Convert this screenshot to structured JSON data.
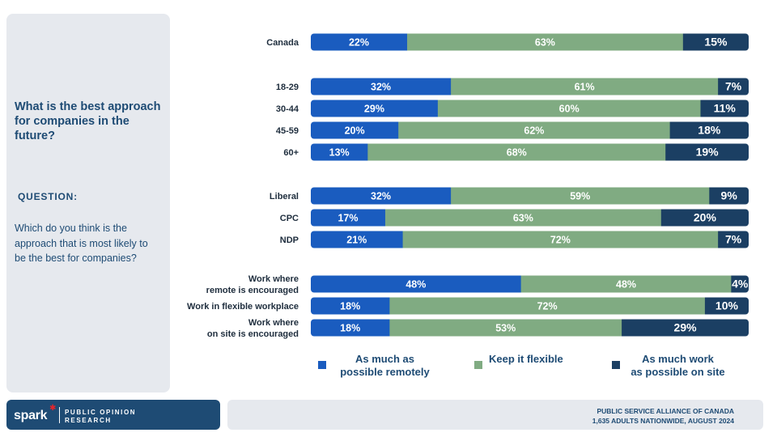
{
  "sidebar": {
    "title": "What is the best approach for companies in the future?",
    "question_label": "QUESTION:",
    "question_text": "Which do you think is the approach that is most likely to be the best for companies?"
  },
  "footer": {
    "brand": "spark",
    "brand_sub": "PUBLIC OPINION RESEARCH",
    "source_line1": "PUBLIC SERVICE ALLIANCE OF CANADA",
    "source_line2": "1,635 ADULTS NATIONWIDE, AUGUST 2024"
  },
  "colors": {
    "remote": "#1a5cbf",
    "flexible": "#80ab82",
    "onsite": "#1b3f63",
    "panel": "#e6e9ee",
    "brand_navy": "#1e4b74"
  },
  "chart_data": {
    "type": "bar",
    "orientation": "horizontal",
    "stacked": "100%",
    "categories": [
      "Canada",
      "18-29",
      "30-44",
      "45-59",
      "60+",
      "Liberal",
      "CPC",
      "NDP",
      "Work where remote is encouraged",
      "Work in flexible workplace",
      "Work where on site is encouraged"
    ],
    "category_lines": [
      [
        "Canada"
      ],
      [
        "18-29"
      ],
      [
        "30-44"
      ],
      [
        "45-59"
      ],
      [
        "60+"
      ],
      [
        "Liberal"
      ],
      [
        "CPC"
      ],
      [
        "NDP"
      ],
      [
        "Work where",
        "remote is encouraged"
      ],
      [
        "Work in flexible workplace"
      ],
      [
        "Work where",
        "on site is encouraged"
      ]
    ],
    "series": [
      {
        "name": "As much as possible remotely",
        "values": [
          22,
          32,
          29,
          20,
          13,
          32,
          17,
          21,
          48,
          18,
          18
        ]
      },
      {
        "name": "Keep it flexible",
        "values": [
          63,
          61,
          60,
          62,
          68,
          59,
          63,
          72,
          48,
          72,
          53
        ]
      },
      {
        "name": "As much work as possible on site",
        "values": [
          15,
          7,
          11,
          18,
          19,
          9,
          20,
          7,
          4,
          10,
          29
        ]
      }
    ],
    "legend": [
      {
        "lines": [
          "As much as",
          "possible remotely"
        ],
        "color_key": "remote"
      },
      {
        "lines": [
          "Keep it flexible"
        ],
        "color_key": "flexible"
      },
      {
        "lines": [
          "As much work",
          "as possible on site"
        ],
        "color_key": "onsite"
      }
    ],
    "legend_position": "bottom",
    "grid": false,
    "xlim": [
      0,
      100
    ]
  }
}
